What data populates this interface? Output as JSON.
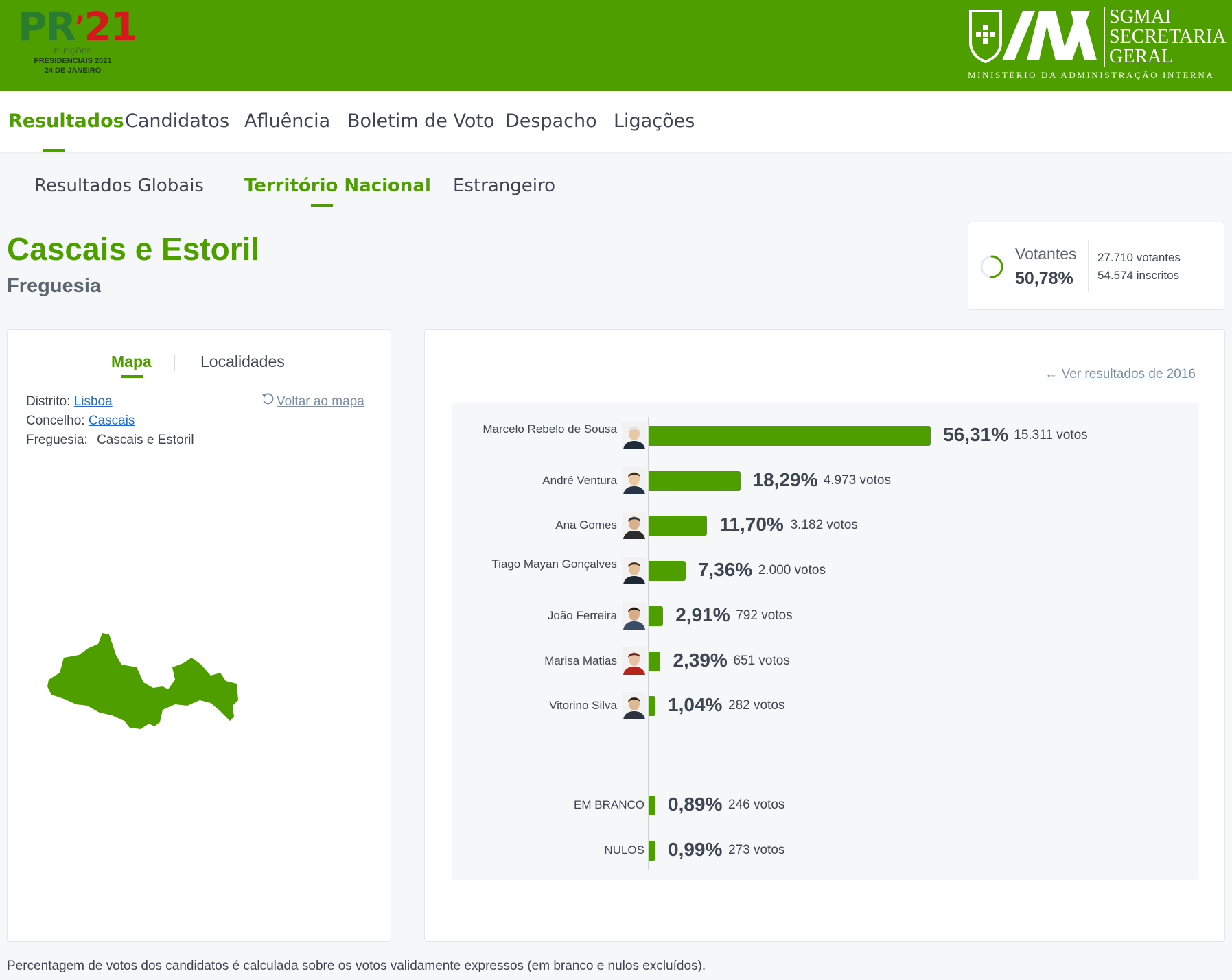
{
  "header": {
    "logo": {
      "pr": "PR",
      "apostrophe": "’",
      "num": "21",
      "line1": "ELEIÇÕES",
      "line2": "PRESIDENCIAIS 2021",
      "line3": "24 DE JANEIRO"
    },
    "org": {
      "line1": "SGMAI",
      "line2": "SECRETARIA",
      "line3": "GERAL",
      "ministry": "MINISTÉRIO DA ADMINISTRAÇÃO INTERNA"
    },
    "brand_color": "#4e9e00"
  },
  "nav": {
    "items": [
      "Resultados",
      "Candidatos",
      "Afluência",
      "Boletim de Voto",
      "Despacho",
      "Ligações"
    ],
    "active": "Resultados"
  },
  "subnav": {
    "items": [
      "Resultados Globais",
      "Território Nacional",
      "Estrangeiro"
    ],
    "active": "Território Nacional"
  },
  "place": {
    "title": "Cascais e Estoril",
    "type": "Freguesia"
  },
  "votantes": {
    "label": "Votantes",
    "percent": "50,78%",
    "fraction": 0.5078,
    "votantes": "27.710 votantes",
    "inscritos": "54.574 inscritos"
  },
  "left_panel": {
    "tabs": [
      "Mapa",
      "Localidades"
    ],
    "active_tab": "Mapa",
    "distrito_label": "Distrito:",
    "distrito": "Lisboa",
    "concelho_label": "Concelho:",
    "concelho": "Cascais",
    "freguesia_label": "Freguesia:",
    "freguesia": "Cascais e Estoril",
    "back_link": "Voltar ao mapa"
  },
  "results": {
    "link_2016": "Ver resultados de 2016",
    "candidates": [
      {
        "name": "Marcelo Rebelo de Sousa",
        "percent": "56,31%",
        "votes": "15.311 votos",
        "value": 56.31
      },
      {
        "name": "André Ventura",
        "percent": "18,29%",
        "votes": "4.973 votos",
        "value": 18.29
      },
      {
        "name": "Ana Gomes",
        "percent": "11,70%",
        "votes": "3.182 votos",
        "value": 11.7
      },
      {
        "name": "Tiago Mayan Gonçalves",
        "percent": "7,36%",
        "votes": "2.000 votos",
        "value": 7.36
      },
      {
        "name": "João Ferreira",
        "percent": "2,91%",
        "votes": "792 votos",
        "value": 2.91
      },
      {
        "name": "Marisa Matias",
        "percent": "2,39%",
        "votes": "651 votos",
        "value": 2.39
      },
      {
        "name": "Vitorino Silva",
        "percent": "1,04%",
        "votes": "282 votos",
        "value": 1.04
      }
    ],
    "special": [
      {
        "name": "EM BRANCO",
        "percent": "0,89%",
        "votes": "246 votos",
        "value": 0.89
      },
      {
        "name": "NULOS",
        "percent": "0,99%",
        "votes": "273 votos",
        "value": 0.99
      }
    ]
  },
  "footnote": "Percentagem de votos dos candidatos é calculada sobre os votos validamente expressos (em branco e nulos excluídos)."
}
